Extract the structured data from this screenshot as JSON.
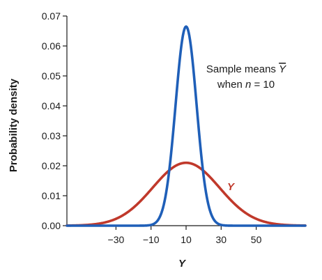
{
  "chart_data": {
    "type": "line",
    "xlabel": "Y",
    "ylabel": "Probability density",
    "xlim": [
      -58,
      78
    ],
    "ylim": [
      0,
      0.07
    ],
    "x_ticks": [
      -30,
      -10,
      10,
      30,
      50
    ],
    "x_tick_labels": [
      "−30",
      "−10",
      "10",
      "30",
      "50"
    ],
    "y_ticks": [
      0.0,
      0.01,
      0.02,
      0.03,
      0.04,
      0.05,
      0.06,
      0.07
    ],
    "y_tick_labels": [
      "0.00",
      "0.01",
      "0.02",
      "0.03",
      "0.04",
      "0.05",
      "0.06",
      "0.07"
    ],
    "grid": false,
    "series": [
      {
        "name": "Y",
        "color": "#c0392b",
        "distribution": "normal",
        "mean": 10,
        "sd": 19
      },
      {
        "name": "Sample means when n = 10",
        "color": "#1f5fb8",
        "distribution": "normal",
        "mean": 10,
        "sd": 6
      }
    ],
    "annotations": {
      "means_line1_prefix": "Sample means ",
      "means_symbol": "Y",
      "means_line2_prefix": "when ",
      "means_n": "n",
      "means_line2_suffix": " = 10",
      "y_curve_label": "Y"
    }
  }
}
